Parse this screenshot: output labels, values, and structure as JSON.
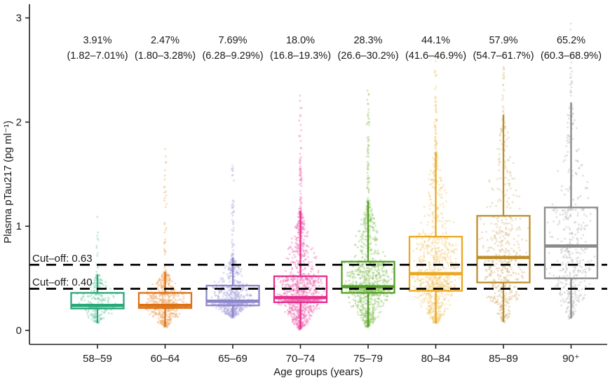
{
  "chart_data": {
    "type": "scatter",
    "overlay": "boxplot_jitter",
    "title": "",
    "xlabel": "Age groups (years)",
    "ylabel": "Plasma pTau217 (pg ml⁻¹)",
    "ylim": [
      0,
      3.1
    ],
    "y_ticks": [
      0,
      1,
      2,
      3
    ],
    "grid": false,
    "legend": "none",
    "cutoff_lines": [
      {
        "label": "Cut–off: 0.63",
        "value": 0.63
      },
      {
        "label": "Cut–off: 0.40",
        "value": 0.4
      }
    ],
    "categories": [
      "58–59",
      "60–64",
      "65–69",
      "70–74",
      "75–79",
      "80–84",
      "85–89",
      "90⁺"
    ],
    "groups": [
      {
        "label": "58–59",
        "positivity_pct": "3.91%",
        "ci": "(1.82–7.01%)",
        "color": "#29a879",
        "point_color": "#6cc7a4",
        "n_points": 260,
        "box": {
          "whisker_low": 0.07,
          "q1": 0.21,
          "median": 0.24,
          "q3": 0.36,
          "whisker_high": 0.54,
          "max": 1.25
        }
      },
      {
        "label": "60–64",
        "positivity_pct": "2.47%",
        "ci": "(1.80–3.28%)",
        "color": "#dd7114",
        "point_color": "#eda45f",
        "n_points": 650,
        "box": {
          "whisker_low": 0.034,
          "q1": 0.215,
          "median": 0.24,
          "q3": 0.36,
          "whisker_high": 0.56,
          "max": 1.75
        }
      },
      {
        "label": "65–69",
        "positivity_pct": "7.69%",
        "ci": "(6.28–9.29%)",
        "color": "#8d86c9",
        "point_color": "#aaa4dc",
        "n_points": 750,
        "box": {
          "whisker_low": 0.128,
          "q1": 0.24,
          "median": 0.28,
          "q3": 0.43,
          "whisker_high": 0.7,
          "max": 1.62
        }
      },
      {
        "label": "70–74",
        "positivity_pct": "18.0%",
        "ci": "(16.8–19.3%)",
        "color": "#e3308e",
        "point_color": "#ef6cb2",
        "n_points": 1200,
        "box": {
          "whisker_low": 0.013,
          "q1": 0.27,
          "median": 0.315,
          "q3": 0.52,
          "whisker_high": 1.15,
          "max": 2.36
        }
      },
      {
        "label": "75–79",
        "positivity_pct": "28.3%",
        "ci": "(26.6–30.2%)",
        "color": "#55a02a",
        "point_color": "#8cc261",
        "n_points": 1100,
        "box": {
          "whisker_low": 0.034,
          "q1": 0.36,
          "median": 0.42,
          "q3": 0.66,
          "whisker_high": 1.24,
          "max": 2.3
        }
      },
      {
        "label": "80–84",
        "positivity_pct": "44.1%",
        "ci": "(41.6–46.9%)",
        "color": "#eaa820",
        "point_color": "#f2c96d",
        "n_points": 900,
        "box": {
          "whisker_low": 0.067,
          "q1": 0.38,
          "median": 0.545,
          "q3": 0.9,
          "whisker_high": 1.71,
          "max": 2.65
        }
      },
      {
        "label": "85–89",
        "positivity_pct": "57.9%",
        "ci": "(54.7–61.7%)",
        "color": "#bf8e2b",
        "point_color": "#d6b77c",
        "n_points": 550,
        "box": {
          "whisker_low": 0.08,
          "q1": 0.46,
          "median": 0.7,
          "q3": 1.1,
          "whisker_high": 2.07,
          "max": 2.85
        }
      },
      {
        "label": "90⁺",
        "positivity_pct": "65.2%",
        "ci": "(60.3–68.9%)",
        "color": "#8a8a8a",
        "point_color": "#b3b3b0",
        "n_points": 450,
        "box": {
          "whisker_low": 0.114,
          "q1": 0.5,
          "median": 0.81,
          "q3": 1.18,
          "whisker_high": 2.19,
          "max": 3.05
        }
      }
    ]
  }
}
